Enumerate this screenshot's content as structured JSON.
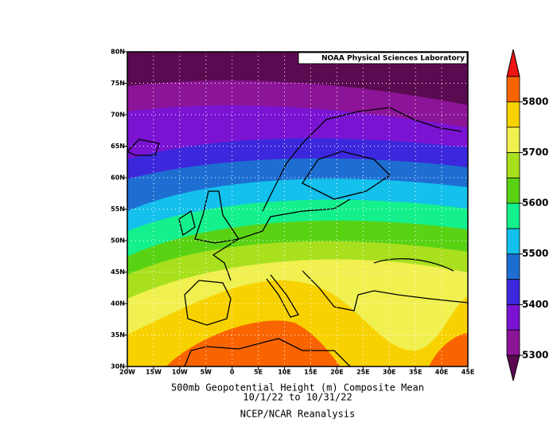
{
  "map": {
    "title": "500mb Geopotential Height (m) Composite Mean",
    "date_range": "10/1/22  to 10/31/22",
    "source": "NCEP/NCAR Reanalysis",
    "credit": "NOAA Physical Sciences Laboratory",
    "xlim": [
      -20,
      45
    ],
    "ylim": [
      30,
      80
    ],
    "xticks": [
      {
        "value": -20,
        "label": "20W"
      },
      {
        "value": -15,
        "label": "15W"
      },
      {
        "value": -10,
        "label": "10W"
      },
      {
        "value": -5,
        "label": "5W"
      },
      0,
      {
        "value": 5,
        "label": "5E"
      },
      {
        "value": 10,
        "label": "10E"
      },
      {
        "value": 15,
        "label": "15E"
      },
      {
        "value": 20,
        "label": "20E"
      },
      {
        "value": 25,
        "label": "25E"
      },
      {
        "value": 30,
        "label": "30E"
      },
      {
        "value": 35,
        "label": "35E"
      },
      {
        "value": 40,
        "label": "40E"
      },
      {
        "value": 45,
        "label": "45E"
      }
    ],
    "yticks": [
      {
        "value": 30,
        "label": "30N"
      },
      {
        "value": 35,
        "label": "35N"
      },
      {
        "value": 40,
        "label": "40N"
      },
      {
        "value": 45,
        "label": "45N"
      },
      {
        "value": 50,
        "label": "50N"
      },
      {
        "value": 55,
        "label": "55N"
      },
      {
        "value": 60,
        "label": "60N"
      },
      {
        "value": 65,
        "label": "65N"
      },
      {
        "value": 70,
        "label": "70N"
      },
      {
        "value": 75,
        "label": "75N"
      },
      {
        "value": 80,
        "label": "80N"
      }
    ],
    "grid": true
  },
  "colorbar": {
    "levels": [
      5300,
      5350,
      5400,
      5450,
      5500,
      5550,
      5600,
      5650,
      5700,
      5750,
      5800,
      5850
    ],
    "colors": [
      "#5a0a50",
      "#8c1496",
      "#7a14d2",
      "#3c28dc",
      "#1e6ed2",
      "#14c0ec",
      "#14f08c",
      "#5ad214",
      "#a8e01e",
      "#f0f050",
      "#f8d200",
      "#fa6400",
      "#f01414"
    ],
    "ticks": [
      5300,
      5400,
      5500,
      5600,
      5700,
      5800
    ]
  }
}
